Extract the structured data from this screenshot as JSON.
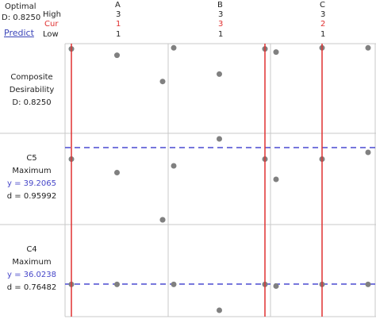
{
  "header": {
    "optimal_label": "Optimal",
    "desirability_text": "D: 0.8250",
    "predict_link": "Predict",
    "high_label": "High",
    "cur_label": "Cur",
    "low_label": "Low"
  },
  "factors": [
    {
      "name": "A",
      "high": "3",
      "cur": "1",
      "low": "1"
    },
    {
      "name": "B",
      "high": "3",
      "cur": "3",
      "low": "1"
    },
    {
      "name": "C",
      "high": "3",
      "cur": "2",
      "low": "1"
    }
  ],
  "rows": {
    "composite": {
      "line1": "Composite",
      "line2": "Desirability",
      "line3": "D: 0.8250"
    },
    "c5": {
      "name": "C5",
      "goal": "Maximum",
      "y_text": "y = 39.2065",
      "d_text": "d = 0.95992"
    },
    "c4": {
      "name": "C4",
      "goal": "Maximum",
      "y_text": "y = 36.0238",
      "d_text": "d = 0.76482"
    }
  },
  "colors": {
    "current_line": "#e03030",
    "prediction_line": "#4a4ad0",
    "point": "#808080",
    "grid": "#c8c8c8"
  },
  "chart_data": {
    "type": "scatter",
    "x_levels": [
      1,
      2,
      3
    ],
    "current_settings": {
      "A": 1,
      "B": 3,
      "C": 2
    },
    "panels": [
      {
        "row": "Composite Desirability",
        "points": {
          "A": [
            [
              1,
              0.85
            ],
            [
              2,
              0.79
            ],
            [
              3,
              0.54
            ]
          ],
          "B": [
            [
              1,
              0.86
            ],
            [
              2,
              0.61
            ],
            [
              3,
              0.85
            ]
          ],
          "C": [
            [
              1,
              0.82
            ],
            [
              2,
              0.86
            ],
            [
              3,
              0.86
            ]
          ]
        }
      },
      {
        "row": "C5",
        "prediction": 39.2065,
        "points": {
          "A": [
            [
              1,
              39.2
            ],
            [
              2,
              39.0
            ],
            [
              3,
              38.3
            ]
          ],
          "B": [
            [
              1,
              39.1
            ],
            [
              2,
              39.5
            ],
            [
              3,
              39.2
            ]
          ],
          "C": [
            [
              1,
              38.9
            ],
            [
              2,
              39.2
            ],
            [
              3,
              39.3
            ]
          ]
        }
      },
      {
        "row": "C4",
        "prediction": 36.0238,
        "points": {
          "A": [
            [
              1,
              36.0
            ],
            [
              2,
              36.0
            ],
            [
              3,
              38.0
            ]
          ],
          "B": [
            [
              1,
              36.0
            ],
            [
              2,
              35.2
            ],
            [
              3,
              36.0
            ]
          ],
          "C": [
            [
              1,
              35.95
            ],
            [
              2,
              36.0
            ],
            [
              3,
              36.0
            ]
          ]
        }
      }
    ]
  }
}
